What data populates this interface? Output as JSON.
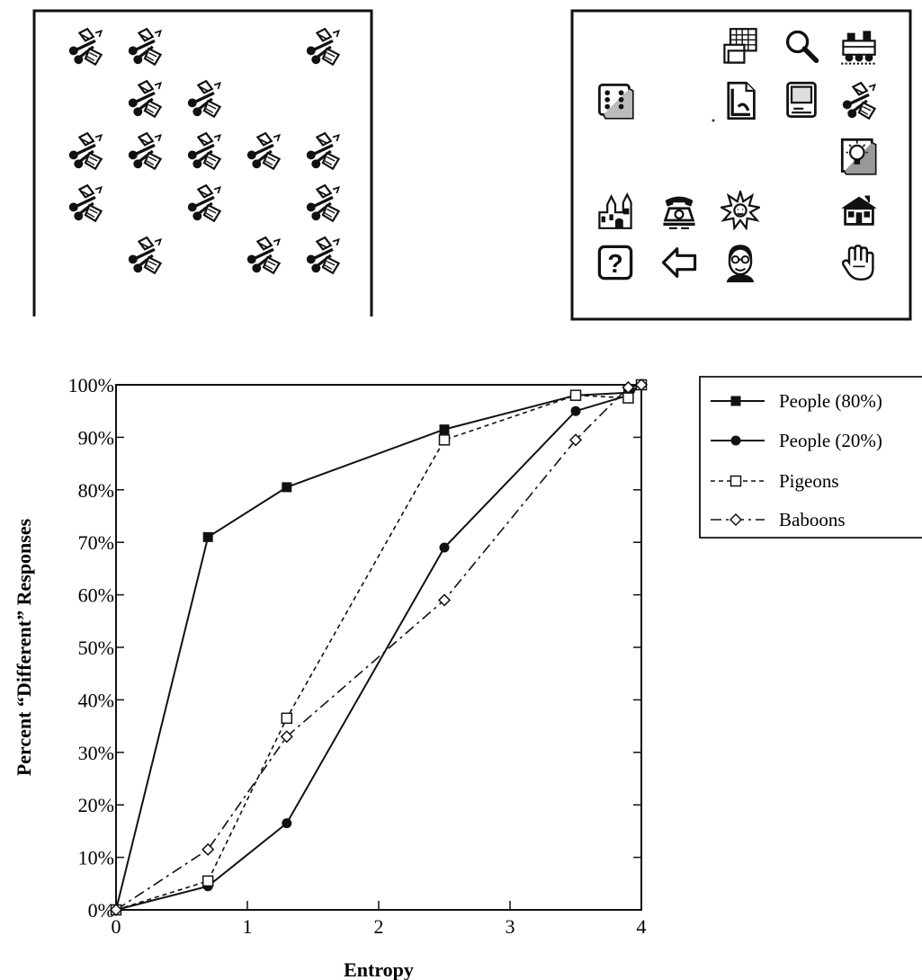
{
  "panels": {
    "left": {
      "description_icon": "scissors-pen-icon",
      "grid_rows": 5,
      "grid_cols": 5,
      "cells": [
        [
          1,
          1,
          0,
          0,
          1
        ],
        [
          0,
          1,
          1,
          0,
          0
        ],
        [
          1,
          1,
          1,
          1,
          1
        ],
        [
          1,
          0,
          1,
          0,
          1
        ],
        [
          0,
          1,
          0,
          1,
          1
        ]
      ]
    },
    "right": {
      "icons": [
        {
          "name": "calendar-stack-icon",
          "row": 0,
          "col": 2
        },
        {
          "name": "magnifier-icon",
          "row": 0,
          "col": 3
        },
        {
          "name": "locomotive-icon",
          "row": 0,
          "col": 4
        },
        {
          "name": "dice-icon",
          "row": 1,
          "col": 0
        },
        {
          "name": "document-icon",
          "row": 1,
          "col": 2
        },
        {
          "name": "computer-icon",
          "row": 1,
          "col": 3
        },
        {
          "name": "scissors-pen-icon",
          "row": 1,
          "col": 4
        },
        {
          "name": "lightbulb-icon",
          "row": 2,
          "col": 4
        },
        {
          "name": "castle-icon",
          "row": 3,
          "col": 0
        },
        {
          "name": "telephone-icon",
          "row": 3,
          "col": 1
        },
        {
          "name": "sun-icon",
          "row": 3,
          "col": 2
        },
        {
          "name": "house-icon",
          "row": 3,
          "col": 4
        },
        {
          "name": "help-icon",
          "row": 4,
          "col": 0
        },
        {
          "name": "left-arrow-icon",
          "row": 4,
          "col": 1
        },
        {
          "name": "face-icon",
          "row": 4,
          "col": 2
        },
        {
          "name": "hand-icon",
          "row": 4,
          "col": 4
        }
      ]
    }
  },
  "chart_data": {
    "type": "line",
    "title": "",
    "xlabel": "Entropy",
    "ylabel": "Percent “Different” Responses",
    "xlim": [
      0,
      4
    ],
    "ylim": [
      0,
      100
    ],
    "xticks": [
      "0",
      "1",
      "2",
      "3",
      "4"
    ],
    "yticks": [
      "0%",
      "10%",
      "20%",
      "30%",
      "40%",
      "50%",
      "60%",
      "70%",
      "80%",
      "90%",
      "100%"
    ],
    "legend_position": "right",
    "series": [
      {
        "name": "People (80%)",
        "marker": "filled-square",
        "style": "solid",
        "x": [
          0,
          0.7,
          1.3,
          2.5,
          3.5,
          3.9,
          4.0
        ],
        "y": [
          0,
          71,
          80.5,
          91.5,
          98,
          98.5,
          100
        ]
      },
      {
        "name": "People (20%)",
        "marker": "filled-circle",
        "style": "solid",
        "x": [
          0,
          0.7,
          1.3,
          2.5,
          3.5,
          3.9,
          4.0
        ],
        "y": [
          0,
          4.5,
          16.5,
          69,
          95,
          98,
          100
        ]
      },
      {
        "name": "Pigeons",
        "marker": "open-square",
        "style": "dashed",
        "x": [
          0,
          0.7,
          1.3,
          2.5,
          3.5,
          3.9,
          4.0
        ],
        "y": [
          0,
          5.5,
          36.5,
          89.5,
          98,
          97.5,
          100
        ]
      },
      {
        "name": "Baboons",
        "marker": "open-diamond",
        "style": "dashdot",
        "x": [
          0,
          0.7,
          1.3,
          2.5,
          3.5,
          3.9,
          4.0
        ],
        "y": [
          0,
          11.5,
          33,
          59,
          89.5,
          99.5,
          100
        ]
      }
    ]
  }
}
